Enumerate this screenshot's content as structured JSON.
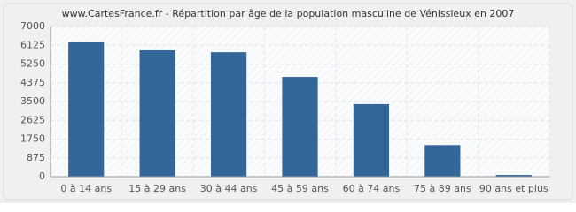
{
  "chart_data": {
    "type": "bar",
    "title": "www.CartesFrance.fr - Répartition par âge de la population masculine de Vénissieux en 2007",
    "categories": [
      "0 à 14 ans",
      "15 à 29 ans",
      "30 à 44 ans",
      "45 à 59 ans",
      "60 à 74 ans",
      "75 à 89 ans",
      "90 ans et plus"
    ],
    "values": [
      6260,
      5890,
      5800,
      4650,
      3380,
      1470,
      80
    ],
    "color": "#336699",
    "ylim": [
      0,
      7000
    ],
    "yticks": [
      0,
      875,
      1750,
      2625,
      3500,
      4375,
      5250,
      6125,
      7000
    ],
    "grid": true
  }
}
